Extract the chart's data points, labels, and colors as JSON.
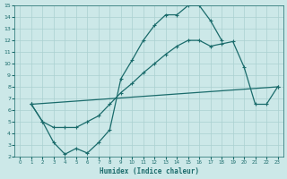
{
  "xlabel": "Humidex (Indice chaleur)",
  "xlim": [
    -0.5,
    23.5
  ],
  "ylim": [
    2,
    15
  ],
  "xticks": [
    0,
    1,
    2,
    3,
    4,
    5,
    6,
    7,
    8,
    9,
    10,
    11,
    12,
    13,
    14,
    15,
    16,
    17,
    18,
    19,
    20,
    21,
    22,
    23
  ],
  "yticks": [
    2,
    3,
    4,
    5,
    6,
    7,
    8,
    9,
    10,
    11,
    12,
    13,
    14,
    15
  ],
  "background_color": "#cce8e8",
  "grid_color": "#aad0d0",
  "line_color": "#1a6b6b",
  "line1_x": [
    1,
    2,
    3,
    4,
    5,
    6,
    7,
    8,
    9,
    10,
    11,
    12,
    13,
    14,
    15,
    16,
    17,
    18
  ],
  "line1_y": [
    6.5,
    5.0,
    3.2,
    2.2,
    2.7,
    2.3,
    3.2,
    4.3,
    8.7,
    10.3,
    12.0,
    13.3,
    14.2,
    14.2,
    15.0,
    15.0,
    13.7,
    12.0
  ],
  "line2_x": [
    1,
    2,
    3,
    4,
    5,
    6,
    7,
    8,
    9,
    10,
    11,
    12,
    13,
    14,
    15,
    16,
    17,
    18,
    19,
    20,
    21,
    22,
    23
  ],
  "line2_y": [
    6.5,
    5.0,
    4.5,
    4.5,
    4.5,
    5.0,
    5.5,
    6.5,
    7.5,
    8.3,
    9.2,
    10.0,
    10.8,
    11.5,
    12.0,
    12.0,
    11.5,
    11.7,
    11.9,
    9.7,
    6.5,
    6.5,
    8.0
  ],
  "line3_x": [
    1,
    23
  ],
  "line3_y": [
    6.5,
    8.0
  ]
}
